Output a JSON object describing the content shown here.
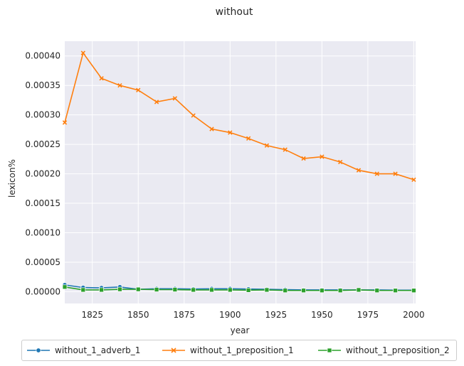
{
  "chart_data": {
    "type": "line",
    "title": "without",
    "xlabel": "year",
    "ylabel": "lexicon%",
    "xlim": [
      1810,
      2001
    ],
    "ylim": [
      -2e-05,
      0.000425
    ],
    "xticks": [
      1825,
      1850,
      1875,
      1900,
      1925,
      1950,
      1975,
      2000
    ],
    "yticks": [
      0.0,
      5e-05,
      0.0001,
      0.00015,
      0.0002,
      0.00025,
      0.0003,
      0.00035,
      0.0004
    ],
    "ytick_labels": [
      "0.00000",
      "0.00005",
      "0.00010",
      "0.00015",
      "0.00020",
      "0.00025",
      "0.00030",
      "0.00035",
      "0.00040"
    ],
    "grid": true,
    "legend_position": "bottom",
    "x": [
      1810,
      1820,
      1830,
      1840,
      1850,
      1860,
      1870,
      1880,
      1890,
      1900,
      1910,
      1920,
      1930,
      1940,
      1950,
      1960,
      1970,
      1980,
      1990,
      2000
    ],
    "series": [
      {
        "name": "without_1_adverb_1",
        "color": "#1f77b4",
        "marker": "circle",
        "values": [
          1.15e-05,
          7e-06,
          6.5e-06,
          8e-06,
          4e-06,
          5e-06,
          5e-06,
          4.5e-06,
          5e-06,
          5e-06,
          4.5e-06,
          4e-06,
          3.5e-06,
          3e-06,
          3e-06,
          3e-06,
          3e-06,
          3e-06,
          2.5e-06,
          2.5e-06
        ]
      },
      {
        "name": "without_1_preposition_1",
        "color": "#ff7f0e",
        "marker": "x",
        "values": [
          0.000287,
          0.000405,
          0.000362,
          0.00035,
          0.000342,
          0.000322,
          0.000328,
          0.000299,
          0.000276,
          0.00027,
          0.00026,
          0.000248,
          0.000241,
          0.000226,
          0.000229,
          0.00022,
          0.000206,
          0.0002,
          0.0002,
          0.00019
        ]
      },
      {
        "name": "without_1_preposition_2",
        "color": "#2ca02c",
        "marker": "square",
        "values": [
          8e-06,
          3e-06,
          3e-06,
          4e-06,
          4e-06,
          3.5e-06,
          3.5e-06,
          3e-06,
          3e-06,
          3e-06,
          2.5e-06,
          3e-06,
          2e-06,
          2e-06,
          2e-06,
          2e-06,
          3e-06,
          2e-06,
          2e-06,
          2e-06
        ]
      }
    ]
  }
}
